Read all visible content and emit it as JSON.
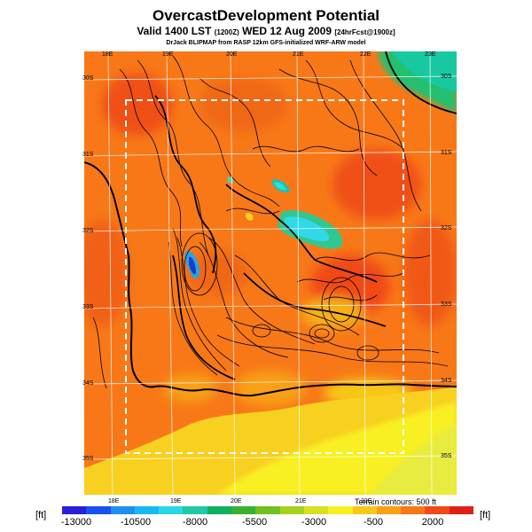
{
  "header": {
    "title": "OvercastDevelopment Potential",
    "subtitle_main": "Valid 1400 LST",
    "subtitle_utc": "(1200Z)",
    "subtitle_date": "WED 12 Aug 2009",
    "subtitle_fcst": "[24hrFcst@1900z]",
    "credit": "DrJack BLIPMAP from RASP 12km GFS-initialized WRF-ARW model"
  },
  "map": {
    "lon_labels_top": [
      "18E",
      "19E",
      "20E",
      "21E",
      "22E",
      "23E"
    ],
    "lon_labels_bottom": [
      "18E",
      "19E",
      "20E",
      "21E",
      "22E"
    ],
    "lat_labels_left": [
      "30S",
      "31S",
      "32S",
      "33S",
      "34S",
      "35S"
    ],
    "lat_labels_right": [
      "30S",
      "31S",
      "32S",
      "33S",
      "34S",
      "35S"
    ],
    "terrain_note": "Terrain contours: 500 ft",
    "unit_left": "[ft]",
    "unit_right": "[ft]"
  },
  "colorbar": {
    "ticks": [
      "-13000",
      "-10500",
      "-8000",
      "-5500",
      "-3000",
      "-500",
      "2000"
    ],
    "colors": [
      "#2a1fd8",
      "#1a50f0",
      "#1e8ff0",
      "#18b8f0",
      "#28d8e8",
      "#20c8a8",
      "#10b060",
      "#38b030",
      "#70c020",
      "#a8d020",
      "#d8e020",
      "#f8f020",
      "#f8c818",
      "#f8a018",
      "#f87818",
      "#f04818",
      "#e02018"
    ]
  }
}
